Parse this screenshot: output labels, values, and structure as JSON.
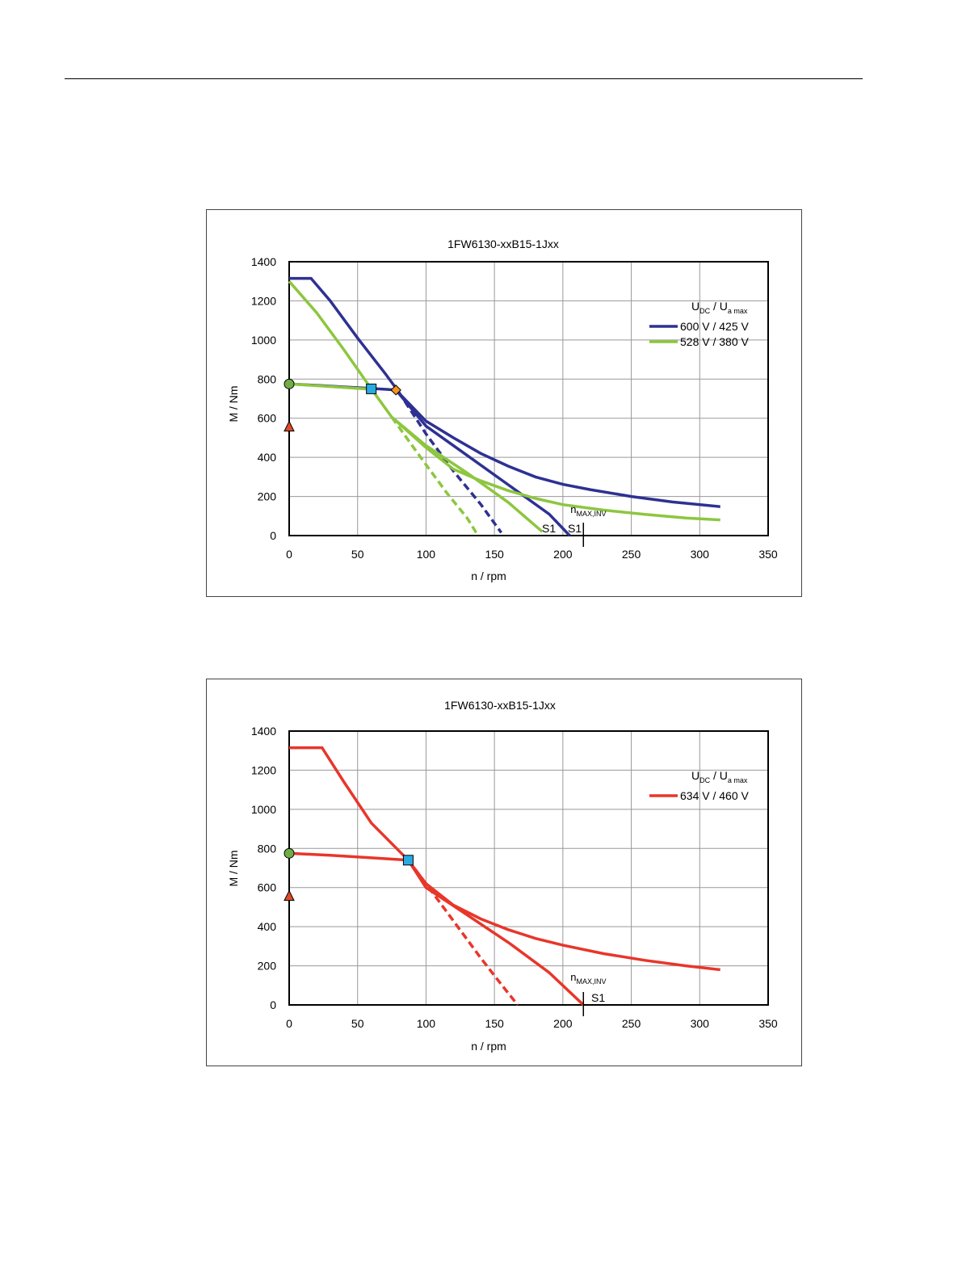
{
  "chart_data": [
    {
      "type": "line",
      "title": "1FW6130-xxB15-1Jxx",
      "xlabel": "n / rpm",
      "ylabel": "M / Nm",
      "xlim": [
        0,
        350
      ],
      "ylim": [
        0,
        1400
      ],
      "x_ticks": [
        "0",
        "50",
        "100",
        "150",
        "200",
        "250",
        "300",
        "350"
      ],
      "y_ticks": [
        "0",
        "200",
        "400",
        "600",
        "800",
        "1000",
        "1200",
        "1400"
      ],
      "grid": true,
      "legend_position": "top-right",
      "legend_header": {
        "u": "U",
        "dc": "DC",
        "sep": "/",
        "u2": "U",
        "amax": "a max"
      },
      "series": [
        {
          "name": "600 V / 425 V",
          "color": "#2e3192",
          "max_torque": [
            [
              0,
              1315
            ],
            [
              16,
              1315
            ],
            [
              30,
              1200
            ],
            [
              50,
              1010
            ],
            [
              70,
              830
            ],
            [
              80,
              735
            ]
          ],
          "max_torque_dashed": [
            [
              80,
              735
            ],
            [
              100,
              520
            ],
            [
              120,
              330
            ],
            [
              140,
              160
            ],
            [
              155,
              15
            ]
          ],
          "continuous": [
            [
              0,
              775
            ],
            [
              20,
              768
            ],
            [
              40,
              760
            ],
            [
              60,
              752
            ],
            [
              70,
              748
            ],
            [
              78,
              744
            ]
          ],
          "limit_curve": [
            [
              78,
              744
            ],
            [
              100,
              585
            ],
            [
              120,
              500
            ],
            [
              140,
              420
            ],
            [
              160,
              355
            ],
            [
              180,
              300
            ],
            [
              200,
              262
            ],
            [
              220,
              235
            ],
            [
              250,
              200
            ],
            [
              280,
              172
            ],
            [
              315,
              148
            ]
          ],
          "s1_curve": [
            [
              78,
              744
            ],
            [
              100,
              560
            ],
            [
              130,
              410
            ],
            [
              160,
              260
            ],
            [
              190,
              110
            ],
            [
              205,
              0
            ]
          ]
        },
        {
          "name": "528 V / 380 V",
          "color": "#8dc63f",
          "max_torque": [
            [
              0,
              1300
            ],
            [
              20,
              1140
            ],
            [
              40,
              950
            ],
            [
              60,
              750
            ],
            [
              75,
              605
            ]
          ],
          "max_torque_dashed": [
            [
              75,
              605
            ],
            [
              95,
              410
            ],
            [
              115,
              220
            ],
            [
              130,
              90
            ],
            [
              138,
              0
            ]
          ],
          "continuous": [
            [
              0,
              775
            ],
            [
              30,
              762
            ],
            [
              60,
              748
            ]
          ],
          "limit_curve": [
            [
              75,
              605
            ],
            [
              100,
              450
            ],
            [
              120,
              340
            ],
            [
              140,
              280
            ],
            [
              160,
              230
            ],
            [
              180,
              190
            ],
            [
              200,
              158
            ],
            [
              230,
              130
            ],
            [
              260,
              108
            ],
            [
              290,
              90
            ],
            [
              315,
              80
            ]
          ],
          "s1_curve": [
            [
              75,
              605
            ],
            [
              100,
              460
            ],
            [
              130,
              320
            ],
            [
              160,
              170
            ],
            [
              185,
              20
            ]
          ]
        }
      ],
      "markers": [
        {
          "symbol": "circle",
          "color": "#70ad47",
          "x": 0,
          "y": 775
        },
        {
          "symbol": "triangle",
          "color": "#e04b2b",
          "x": 0,
          "y": 555
        },
        {
          "symbol": "square",
          "color": "#29abe2",
          "x": 60,
          "y": 750
        },
        {
          "symbol": "diamond",
          "color": "#f7941d",
          "x": 78,
          "y": 744
        }
      ],
      "annotations": {
        "nmax_main": "n",
        "nmax_sub": "MAX,INV",
        "nmax_x": 215,
        "s1_labels": [
          "S1",
          "S1"
        ]
      }
    },
    {
      "type": "line",
      "title": "1FW6130-xxB15-1Jxx",
      "xlabel": "n / rpm",
      "ylabel": "M / Nm",
      "xlim": [
        0,
        350
      ],
      "ylim": [
        0,
        1400
      ],
      "x_ticks": [
        "0",
        "50",
        "100",
        "150",
        "200",
        "250",
        "300",
        "350"
      ],
      "y_ticks": [
        "0",
        "200",
        "400",
        "600",
        "800",
        "1000",
        "1200",
        "1400"
      ],
      "grid": true,
      "legend_position": "top-right",
      "legend_header": {
        "u": "U",
        "dc": "DC",
        "sep": "/",
        "u2": "U",
        "amax": "a max"
      },
      "series": [
        {
          "name": "634 V / 460 V",
          "color": "#e8362a",
          "max_torque": [
            [
              0,
              1315
            ],
            [
              24,
              1315
            ],
            [
              40,
              1140
            ],
            [
              60,
              930
            ],
            [
              87,
              740
            ]
          ],
          "max_torque_dashed": [
            [
              87,
              740
            ],
            [
              100,
              620
            ],
            [
              120,
              430
            ],
            [
              140,
              240
            ],
            [
              155,
              105
            ],
            [
              167,
              0
            ]
          ],
          "continuous": [
            [
              0,
              775
            ],
            [
              30,
              765
            ],
            [
              60,
              752
            ],
            [
              87,
              740
            ]
          ],
          "limit_curve": [
            [
              87,
              740
            ],
            [
              100,
              620
            ],
            [
              120,
              510
            ],
            [
              140,
              440
            ],
            [
              160,
              385
            ],
            [
              180,
              340
            ],
            [
              200,
              305
            ],
            [
              230,
              262
            ],
            [
              260,
              228
            ],
            [
              290,
              200
            ],
            [
              315,
              180
            ]
          ],
          "s1_curve": [
            [
              87,
              740
            ],
            [
              100,
              600
            ],
            [
              130,
              460
            ],
            [
              160,
              320
            ],
            [
              190,
              165
            ],
            [
              215,
              0
            ]
          ]
        }
      ],
      "markers": [
        {
          "symbol": "circle",
          "color": "#70ad47",
          "x": 0,
          "y": 775
        },
        {
          "symbol": "triangle",
          "color": "#e04b2b",
          "x": 0,
          "y": 555
        },
        {
          "symbol": "square",
          "color": "#29abe2",
          "x": 87,
          "y": 740
        }
      ],
      "annotations": {
        "nmax_main": "n",
        "nmax_sub": "MAX,INV",
        "nmax_x": 215,
        "s1_labels": [
          "S1"
        ]
      }
    }
  ]
}
